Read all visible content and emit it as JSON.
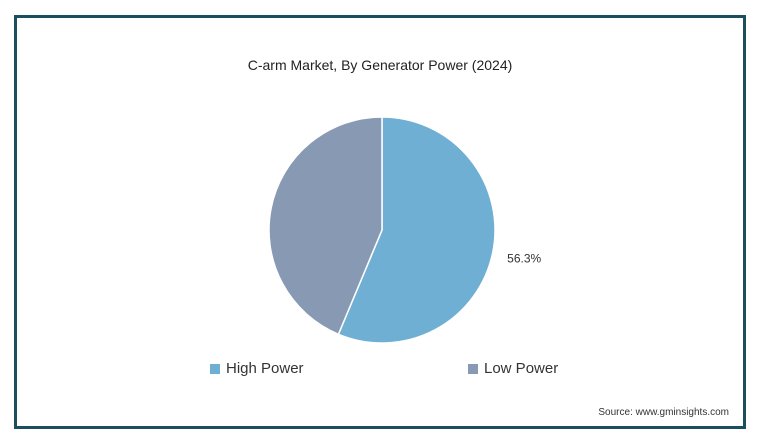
{
  "chart_data": {
    "type": "pie",
    "title": "C-arm Market, By Generator Power (2024)",
    "labels": [
      "High Power",
      "Low Power"
    ],
    "values": [
      56.3,
      43.7
    ],
    "data_labels": [
      "56.3%",
      ""
    ],
    "colors": [
      "#6eafd3",
      "#8899b3"
    ],
    "legend_position": "bottom"
  },
  "source": "Source: www.gminsights.com"
}
